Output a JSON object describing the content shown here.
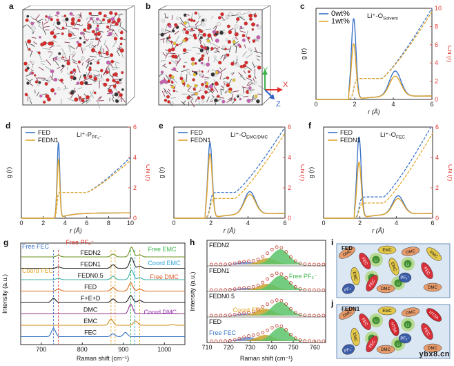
{
  "panels": {
    "a": {
      "letter": "a"
    },
    "b": {
      "letter": "b"
    },
    "c": {
      "letter": "c",
      "legend": [
        "0wt%",
        "1wt%"
      ],
      "title": "Li⁺-O",
      "title_sub": "Solvent",
      "ylabel": "g (r)",
      "ylabel2": "CN (r)",
      "xlabel": "r (Å)",
      "xticks": [
        "0",
        "2",
        "4",
        "6"
      ],
      "yticks2": [
        "0",
        "2",
        "4",
        "6",
        "8",
        "10"
      ]
    },
    "d": {
      "letter": "d",
      "legend": [
        "FED",
        "FEDN1"
      ],
      "title": "Li⁺-P",
      "title_sub": "PF₆⁻",
      "ylabel": "g (r)",
      "ylabel2": "CN (r)",
      "xlabel": "r (Å)",
      "xticks": [
        "0",
        "2",
        "4",
        "6",
        "8",
        "10"
      ],
      "yticks2": [
        "0",
        "2",
        "4",
        "6"
      ]
    },
    "e": {
      "letter": "e",
      "legend": [
        "FED",
        "FEDN1"
      ],
      "title": "Li⁺-O",
      "title_sub": "EMC/DMC",
      "ylabel": "g (r)",
      "ylabel2": "CN (r)",
      "xlabel": "r (Å)",
      "xticks": [
        "0",
        "2",
        "4",
        "6"
      ],
      "yticks2": [
        "0",
        "2",
        "4",
        "6"
      ]
    },
    "f": {
      "letter": "f",
      "legend": [
        "FED",
        "FEDN1"
      ],
      "title": "Li⁺-O",
      "title_sub": "FEC",
      "ylabel": "g (r)",
      "ylabel2": "CN (r)",
      "xlabel": "r (Å)",
      "xticks": [
        "0",
        "2",
        "4",
        "6"
      ],
      "yticks2": [
        "0",
        "2",
        "4",
        "6"
      ]
    },
    "g": {
      "letter": "g",
      "ylabel": "Intensity (a.u.)",
      "xlabel": "Raman shift (cm⁻¹)",
      "xticks": [
        "700",
        "800",
        "900",
        "1000"
      ],
      "traces": [
        "FEDN2",
        "FEDN1",
        "FEDN0.5",
        "FED",
        "F+E+D",
        "DMC",
        "EMC",
        "FEC"
      ],
      "annotations": [
        "Free FEC",
        "Free PF₆⁻",
        "Coord  FEC",
        "Free EMC",
        "Coord EMC",
        "Free DMC",
        "Coord DMC"
      ]
    },
    "h": {
      "letter": "h",
      "ylabel": "Intensity (a.u.)",
      "xlabel": "Raman shift (cm⁻¹)",
      "xticks": [
        "710",
        "720",
        "730",
        "740",
        "750",
        "760"
      ],
      "traces": [
        "FEDN2",
        "FEDN1",
        "FEDN0.5",
        "FED"
      ],
      "annotations": [
        "Free PF₆⁻",
        "Coord  FEC",
        "Free FEC"
      ]
    },
    "i": {
      "letter": "i",
      "label": "FED",
      "molecules": [
        "DMC",
        "FEC",
        "EMC",
        "DMC",
        "EMC",
        "FEC",
        "EMC",
        "DMC",
        "PF₆⁻",
        "PF₆⁻",
        "DMC",
        "FEC",
        "EMC"
      ]
    },
    "j": {
      "letter": "j",
      "label": "FEDN1",
      "molecules": [
        "DMC",
        "FEC",
        "EMC",
        "DMC",
        "NTSA",
        "FEC",
        "EMC",
        "DMC",
        "PF₆⁻",
        "PF₆⁻",
        "DMC",
        "FEC",
        "NTSA"
      ]
    }
  },
  "axis_labels": {
    "x": "X",
    "y": "Y",
    "z": "Z"
  },
  "watermark": "ybx8.cn",
  "colors": {
    "blue": "#3a73c9",
    "orange": "#e3a528",
    "red": "#e1312b",
    "green": "#3cb44a"
  },
  "chart_data": [
    {
      "type": "line",
      "panel": "c",
      "xlabel": "r (Å)",
      "ylabel": "g (r)",
      "ylabel2": "CN (r)",
      "xlim": [
        0,
        6
      ],
      "ylim2": [
        0,
        10
      ],
      "series": [
        {
          "name": "0wt%",
          "peaks": [
            {
              "r": 1.95,
              "g": 8.0
            },
            {
              "r": 4.1,
              "g": 2.5
            }
          ]
        },
        {
          "name": "1wt%",
          "peaks": [
            {
              "r": 1.95,
              "g": 5.5
            },
            {
              "r": 4.1,
              "g": 2.0
            }
          ]
        }
      ]
    },
    {
      "type": "line",
      "panel": "d",
      "xlabel": "r (Å)",
      "ylabel": "g (r)",
      "ylabel2": "CN (r)",
      "xlim": [
        0,
        10
      ],
      "ylim2": [
        0,
        6
      ],
      "series": [
        {
          "name": "FED",
          "peaks": [
            {
              "r": 3.4,
              "g": 5.0
            }
          ]
        },
        {
          "name": "FEDN1",
          "peaks": [
            {
              "r": 3.4,
              "g": 3.9
            }
          ]
        }
      ]
    },
    {
      "type": "line",
      "panel": "e",
      "xlabel": "r (Å)",
      "ylabel": "g (r)",
      "ylabel2": "CN (r)",
      "xlim": [
        0,
        6
      ],
      "ylim2": [
        0,
        6
      ],
      "series": [
        {
          "name": "FED",
          "peaks": [
            {
              "r": 1.95,
              "g": 5.4
            },
            {
              "r": 4.1,
              "g": 1.6
            }
          ]
        },
        {
          "name": "FEDN1",
          "peaks": [
            {
              "r": 1.95,
              "g": 4.6
            },
            {
              "r": 4.1,
              "g": 1.4
            }
          ]
        }
      ]
    },
    {
      "type": "line",
      "panel": "f",
      "xlabel": "r (Å)",
      "ylabel": "g (r)",
      "ylabel2": "CN (r)",
      "xlim": [
        0,
        6
      ],
      "ylim2": [
        0,
        6
      ],
      "series": [
        {
          "name": "FED",
          "peaks": [
            {
              "r": 1.95,
              "g": 5.8
            },
            {
              "r": 4.1,
              "g": 1.3
            }
          ]
        },
        {
          "name": "FEDN1",
          "peaks": [
            {
              "r": 1.95,
              "g": 4.0
            },
            {
              "r": 4.1,
              "g": 1.1
            }
          ]
        }
      ]
    }
  ]
}
